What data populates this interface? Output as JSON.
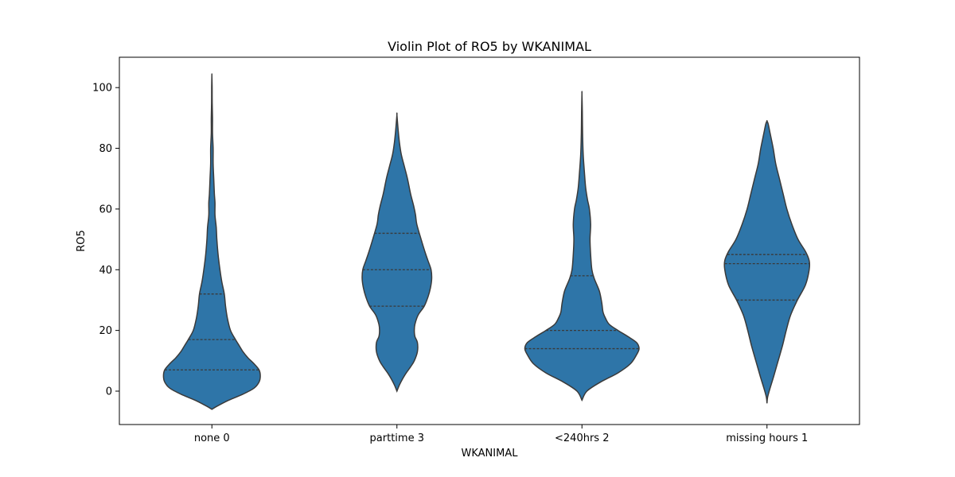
{
  "chart_data": {
    "type": "violin",
    "title": "Violin Plot of RO5 by WKANIMAL",
    "xlabel": "WKANIMAL",
    "ylabel": "RO5",
    "ylim": [
      -11,
      110
    ],
    "yticks": [
      0,
      20,
      40,
      60,
      80,
      100
    ],
    "grid": false,
    "color": "#2e75a8",
    "categories": [
      "none 0",
      "parttime 3",
      "<240hrs 2",
      "missing hours 1"
    ],
    "violins": [
      {
        "category": "none 0",
        "quartiles": [
          7,
          17,
          32
        ],
        "profile": [
          [
            -6,
            0
          ],
          [
            -5,
            8
          ],
          [
            -3,
            27
          ],
          [
            -1,
            50
          ],
          [
            1,
            68
          ],
          [
            3,
            76
          ],
          [
            5,
            78
          ],
          [
            7,
            76
          ],
          [
            9,
            68
          ],
          [
            11,
            58
          ],
          [
            13,
            50
          ],
          [
            15,
            44
          ],
          [
            17,
            38
          ],
          [
            20,
            30
          ],
          [
            24,
            25
          ],
          [
            28,
            22
          ],
          [
            32,
            20
          ],
          [
            36,
            16
          ],
          [
            40,
            13
          ],
          [
            45,
            10
          ],
          [
            50,
            8
          ],
          [
            54,
            7
          ],
          [
            58,
            5
          ],
          [
            62,
            5
          ],
          [
            65,
            4
          ],
          [
            70,
            3
          ],
          [
            75,
            2
          ],
          [
            80,
            2
          ],
          [
            85,
            1
          ],
          [
            90,
            1
          ],
          [
            95,
            0.5
          ],
          [
            100,
            0.4
          ],
          [
            104,
            0
          ]
        ]
      },
      {
        "category": "parttime 3",
        "quartiles": [
          28,
          40,
          52
        ],
        "profile": [
          [
            0,
            0
          ],
          [
            2,
            4
          ],
          [
            4,
            9
          ],
          [
            6,
            15
          ],
          [
            8,
            22
          ],
          [
            10,
            28
          ],
          [
            13,
            33
          ],
          [
            16,
            33
          ],
          [
            18,
            29
          ],
          [
            20,
            28
          ],
          [
            22,
            29
          ],
          [
            25,
            34
          ],
          [
            28,
            44
          ],
          [
            31,
            50
          ],
          [
            34,
            54
          ],
          [
            37,
            56
          ],
          [
            40,
            55
          ],
          [
            43,
            50
          ],
          [
            46,
            45
          ],
          [
            50,
            39
          ],
          [
            55,
            32
          ],
          [
            58,
            30
          ],
          [
            61,
            27
          ],
          [
            65,
            22
          ],
          [
            70,
            17
          ],
          [
            74,
            12
          ],
          [
            78,
            7
          ],
          [
            82,
            4
          ],
          [
            86,
            2
          ],
          [
            91,
            0
          ]
        ]
      },
      {
        "category": "<240hrs 2",
        "quartiles": [
          14,
          20,
          38
        ],
        "profile": [
          [
            -3,
            0
          ],
          [
            0,
            8
          ],
          [
            3,
            30
          ],
          [
            6,
            58
          ],
          [
            9,
            78
          ],
          [
            12,
            88
          ],
          [
            14,
            92
          ],
          [
            16,
            88
          ],
          [
            18,
            74
          ],
          [
            20,
            58
          ],
          [
            22,
            44
          ],
          [
            24,
            38
          ],
          [
            26,
            34
          ],
          [
            29,
            32
          ],
          [
            33,
            28
          ],
          [
            37,
            20
          ],
          [
            40,
            16
          ],
          [
            45,
            14
          ],
          [
            50,
            13
          ],
          [
            55,
            14
          ],
          [
            60,
            12
          ],
          [
            63,
            9
          ],
          [
            67,
            6
          ],
          [
            72,
            4
          ],
          [
            78,
            2
          ],
          [
            85,
            1
          ],
          [
            92,
            0.6
          ],
          [
            98,
            0
          ]
        ]
      },
      {
        "category": "missing hours 1",
        "quartiles": [
          30,
          42,
          45
        ],
        "profile": [
          [
            -4,
            0
          ],
          [
            -2,
            1
          ],
          [
            1,
            5
          ],
          [
            5,
            11
          ],
          [
            10,
            18
          ],
          [
            15,
            25
          ],
          [
            20,
            31
          ],
          [
            25,
            38
          ],
          [
            30,
            49
          ],
          [
            35,
            62
          ],
          [
            40,
            68
          ],
          [
            43,
            68
          ],
          [
            46,
            62
          ],
          [
            50,
            50
          ],
          [
            55,
            40
          ],
          [
            60,
            32
          ],
          [
            65,
            26
          ],
          [
            70,
            20
          ],
          [
            75,
            14
          ],
          [
            80,
            10
          ],
          [
            85,
            5
          ],
          [
            88,
            2
          ],
          [
            89,
            0
          ]
        ]
      }
    ]
  }
}
